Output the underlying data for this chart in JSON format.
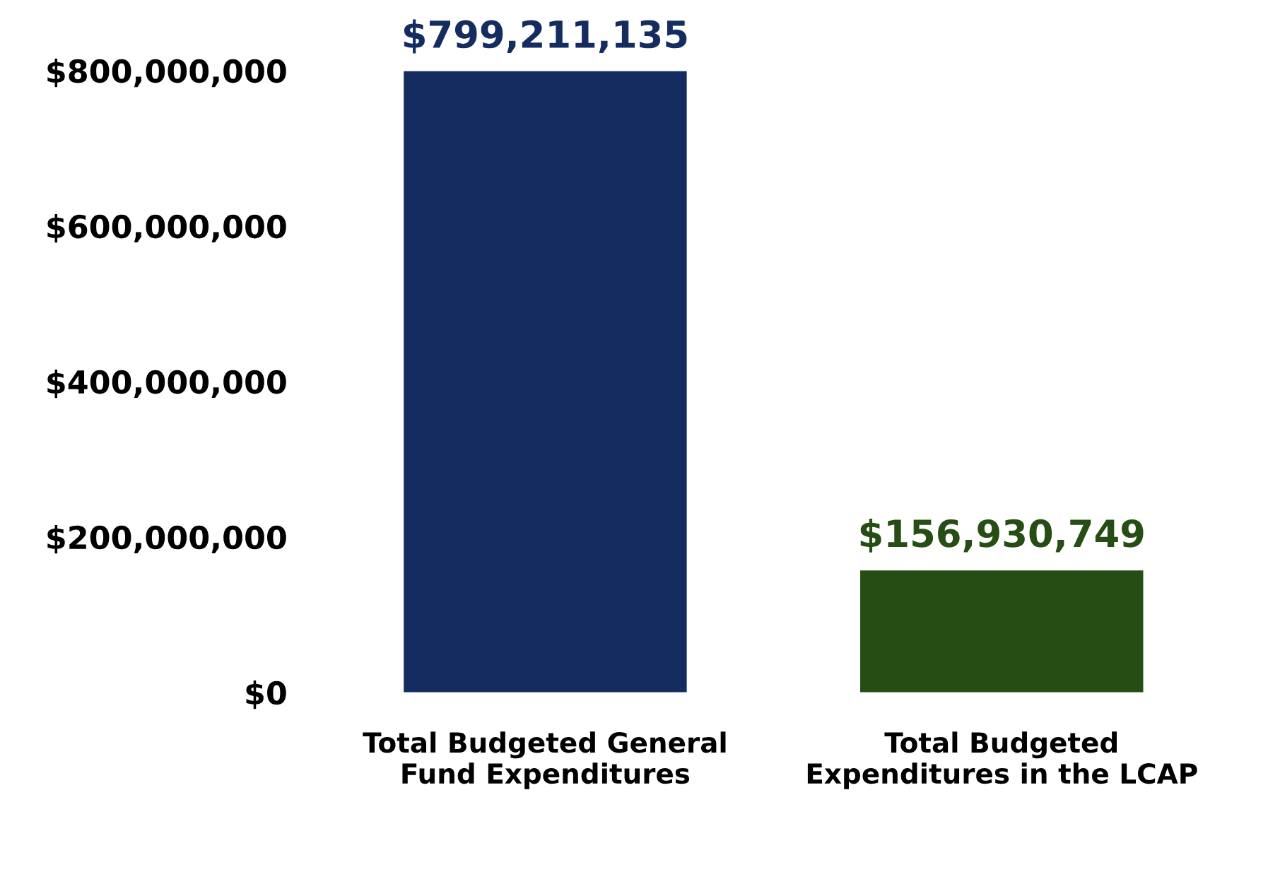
{
  "chart_data": {
    "type": "bar",
    "categories": [
      "Total Budgeted General\nFund Expenditures",
      "Total Budgeted\nExpenditures in the LCAP"
    ],
    "values": [
      799211135,
      156930749
    ],
    "colors": [
      "#142c5f",
      "#254d14"
    ],
    "value_labels": [
      "$799,211,135",
      "$156,930,749"
    ],
    "ylim": [
      0,
      800000000
    ],
    "yticks": [
      {
        "value": 0,
        "label": "$0"
      },
      {
        "value": 200000000,
        "label": "$200,000,000"
      },
      {
        "value": 400000000,
        "label": "$400,000,000"
      },
      {
        "value": 600000000,
        "label": "$600,000,000"
      },
      {
        "value": 800000000,
        "label": "$800,000,000"
      }
    ],
    "grid": false,
    "legend": false
  }
}
